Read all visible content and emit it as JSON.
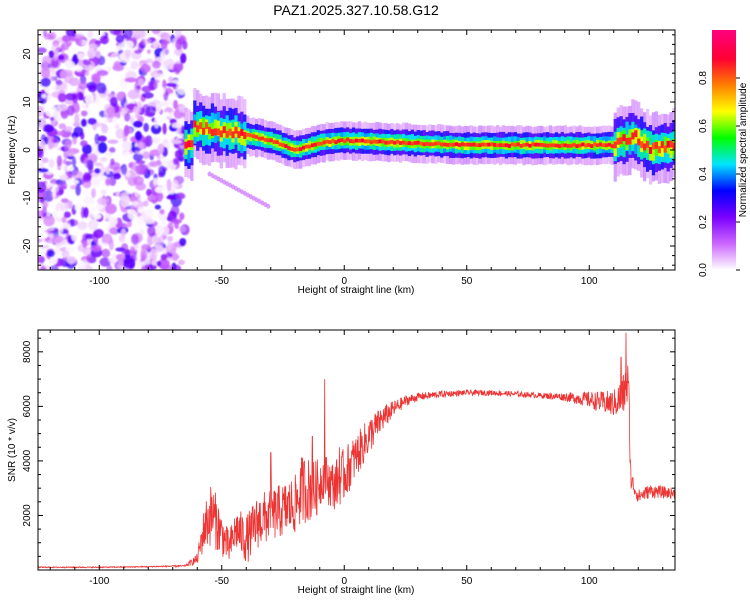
{
  "figure_title": "PAZ1.2025.327.10.58.G12",
  "chart_data": [
    {
      "type": "heatmap",
      "xlabel": "Height of straight line (km)",
      "ylabel": "Frequency (Hz)",
      "xlim": [
        -125,
        135
      ],
      "ylim": [
        -25,
        25
      ],
      "xticks": [
        -100,
        -50,
        0,
        50,
        100
      ],
      "yticks": [
        -20,
        -10,
        0,
        10,
        20
      ],
      "colorbar": {
        "label": "Normalized spectral amplitude",
        "range": [
          0,
          1
        ],
        "ticks": [
          0.0,
          0.2,
          0.4,
          0.6,
          0.8
        ],
        "tick_labels": [
          "0.0",
          "0.2",
          "0.4",
          "0.6",
          "0.8"
        ],
        "colors": [
          "#ffffff",
          "#cc66ff",
          "#7a00ff",
          "#0000ff",
          "#00e5ff",
          "#00ff00",
          "#ffff00",
          "#ff7f00",
          "#ff0033",
          "#ff0080"
        ]
      },
      "regions": [
        {
          "name": "noise",
          "x_range": [
            -125,
            -65
          ],
          "freq_range": [
            -25,
            25
          ],
          "amplitude_range": [
            0.0,
            0.3
          ]
        },
        {
          "name": "tone",
          "x_range": [
            -65,
            135
          ],
          "freq_center": [
            [
              -62,
              5
            ],
            [
              -50,
              4
            ],
            [
              -40,
              3
            ],
            [
              -30,
              2
            ],
            [
              -20,
              0
            ],
            [
              -10,
              1.5
            ],
            [
              0,
              2
            ],
            [
              50,
              1
            ],
            [
              100,
              1
            ],
            [
              110,
              1
            ],
            [
              118,
              3
            ],
            [
              125,
              0
            ],
            [
              135,
              1
            ]
          ],
          "amplitude": 0.8
        }
      ]
    },
    {
      "type": "line",
      "xlabel": "Height of straight line (km)",
      "ylabel": "SNR (10 * v/v)",
      "xlim": [
        -125,
        135
      ],
      "ylim": [
        0,
        8800
      ],
      "xticks": [
        -100,
        -50,
        0,
        50,
        100
      ],
      "yticks": [
        2000,
        4000,
        6000,
        8000
      ],
      "series": [
        {
          "name": "SNR",
          "color": "#ee3333",
          "x": [
            -125,
            -100,
            -80,
            -65,
            -60,
            -57,
            -54,
            -50,
            -47,
            -44,
            -40,
            -35,
            -30,
            -25,
            -20,
            -17,
            -12,
            -8,
            -6,
            -4,
            0,
            5,
            10,
            15,
            20,
            25,
            30,
            40,
            50,
            60,
            70,
            80,
            90,
            100,
            105,
            110,
            113,
            115,
            116,
            117,
            120,
            125,
            135
          ],
          "y": [
            100,
            100,
            120,
            150,
            400,
            1600,
            2100,
            1300,
            800,
            1500,
            1100,
            1800,
            2000,
            2200,
            2400,
            3000,
            2900,
            3500,
            3200,
            3100,
            3500,
            4200,
            4900,
            5500,
            5900,
            6200,
            6350,
            6450,
            6500,
            6500,
            6450,
            6400,
            6350,
            6250,
            6150,
            6100,
            6300,
            6600,
            6800,
            3300,
            2700,
            2900,
            2800
          ],
          "noise": [
            20,
            20,
            20,
            30,
            200,
            900,
            1200,
            800,
            600,
            800,
            900,
            1000,
            1000,
            1000,
            1100,
            1300,
            1100,
            800,
            900,
            900,
            1000,
            800,
            700,
            500,
            300,
            200,
            150,
            120,
            100,
            100,
            100,
            100,
            150,
            300,
            400,
            500,
            700,
            900,
            1000,
            400,
            250,
            250,
            200
          ],
          "spikes": [
            [
              -8,
              7000
            ],
            [
              115,
              8700
            ],
            [
              113,
              7800
            ],
            [
              -2,
              4500
            ],
            [
              -30,
              4300
            ],
            [
              -13,
              4900
            ],
            [
              14,
              5800
            ]
          ]
        }
      ]
    }
  ]
}
